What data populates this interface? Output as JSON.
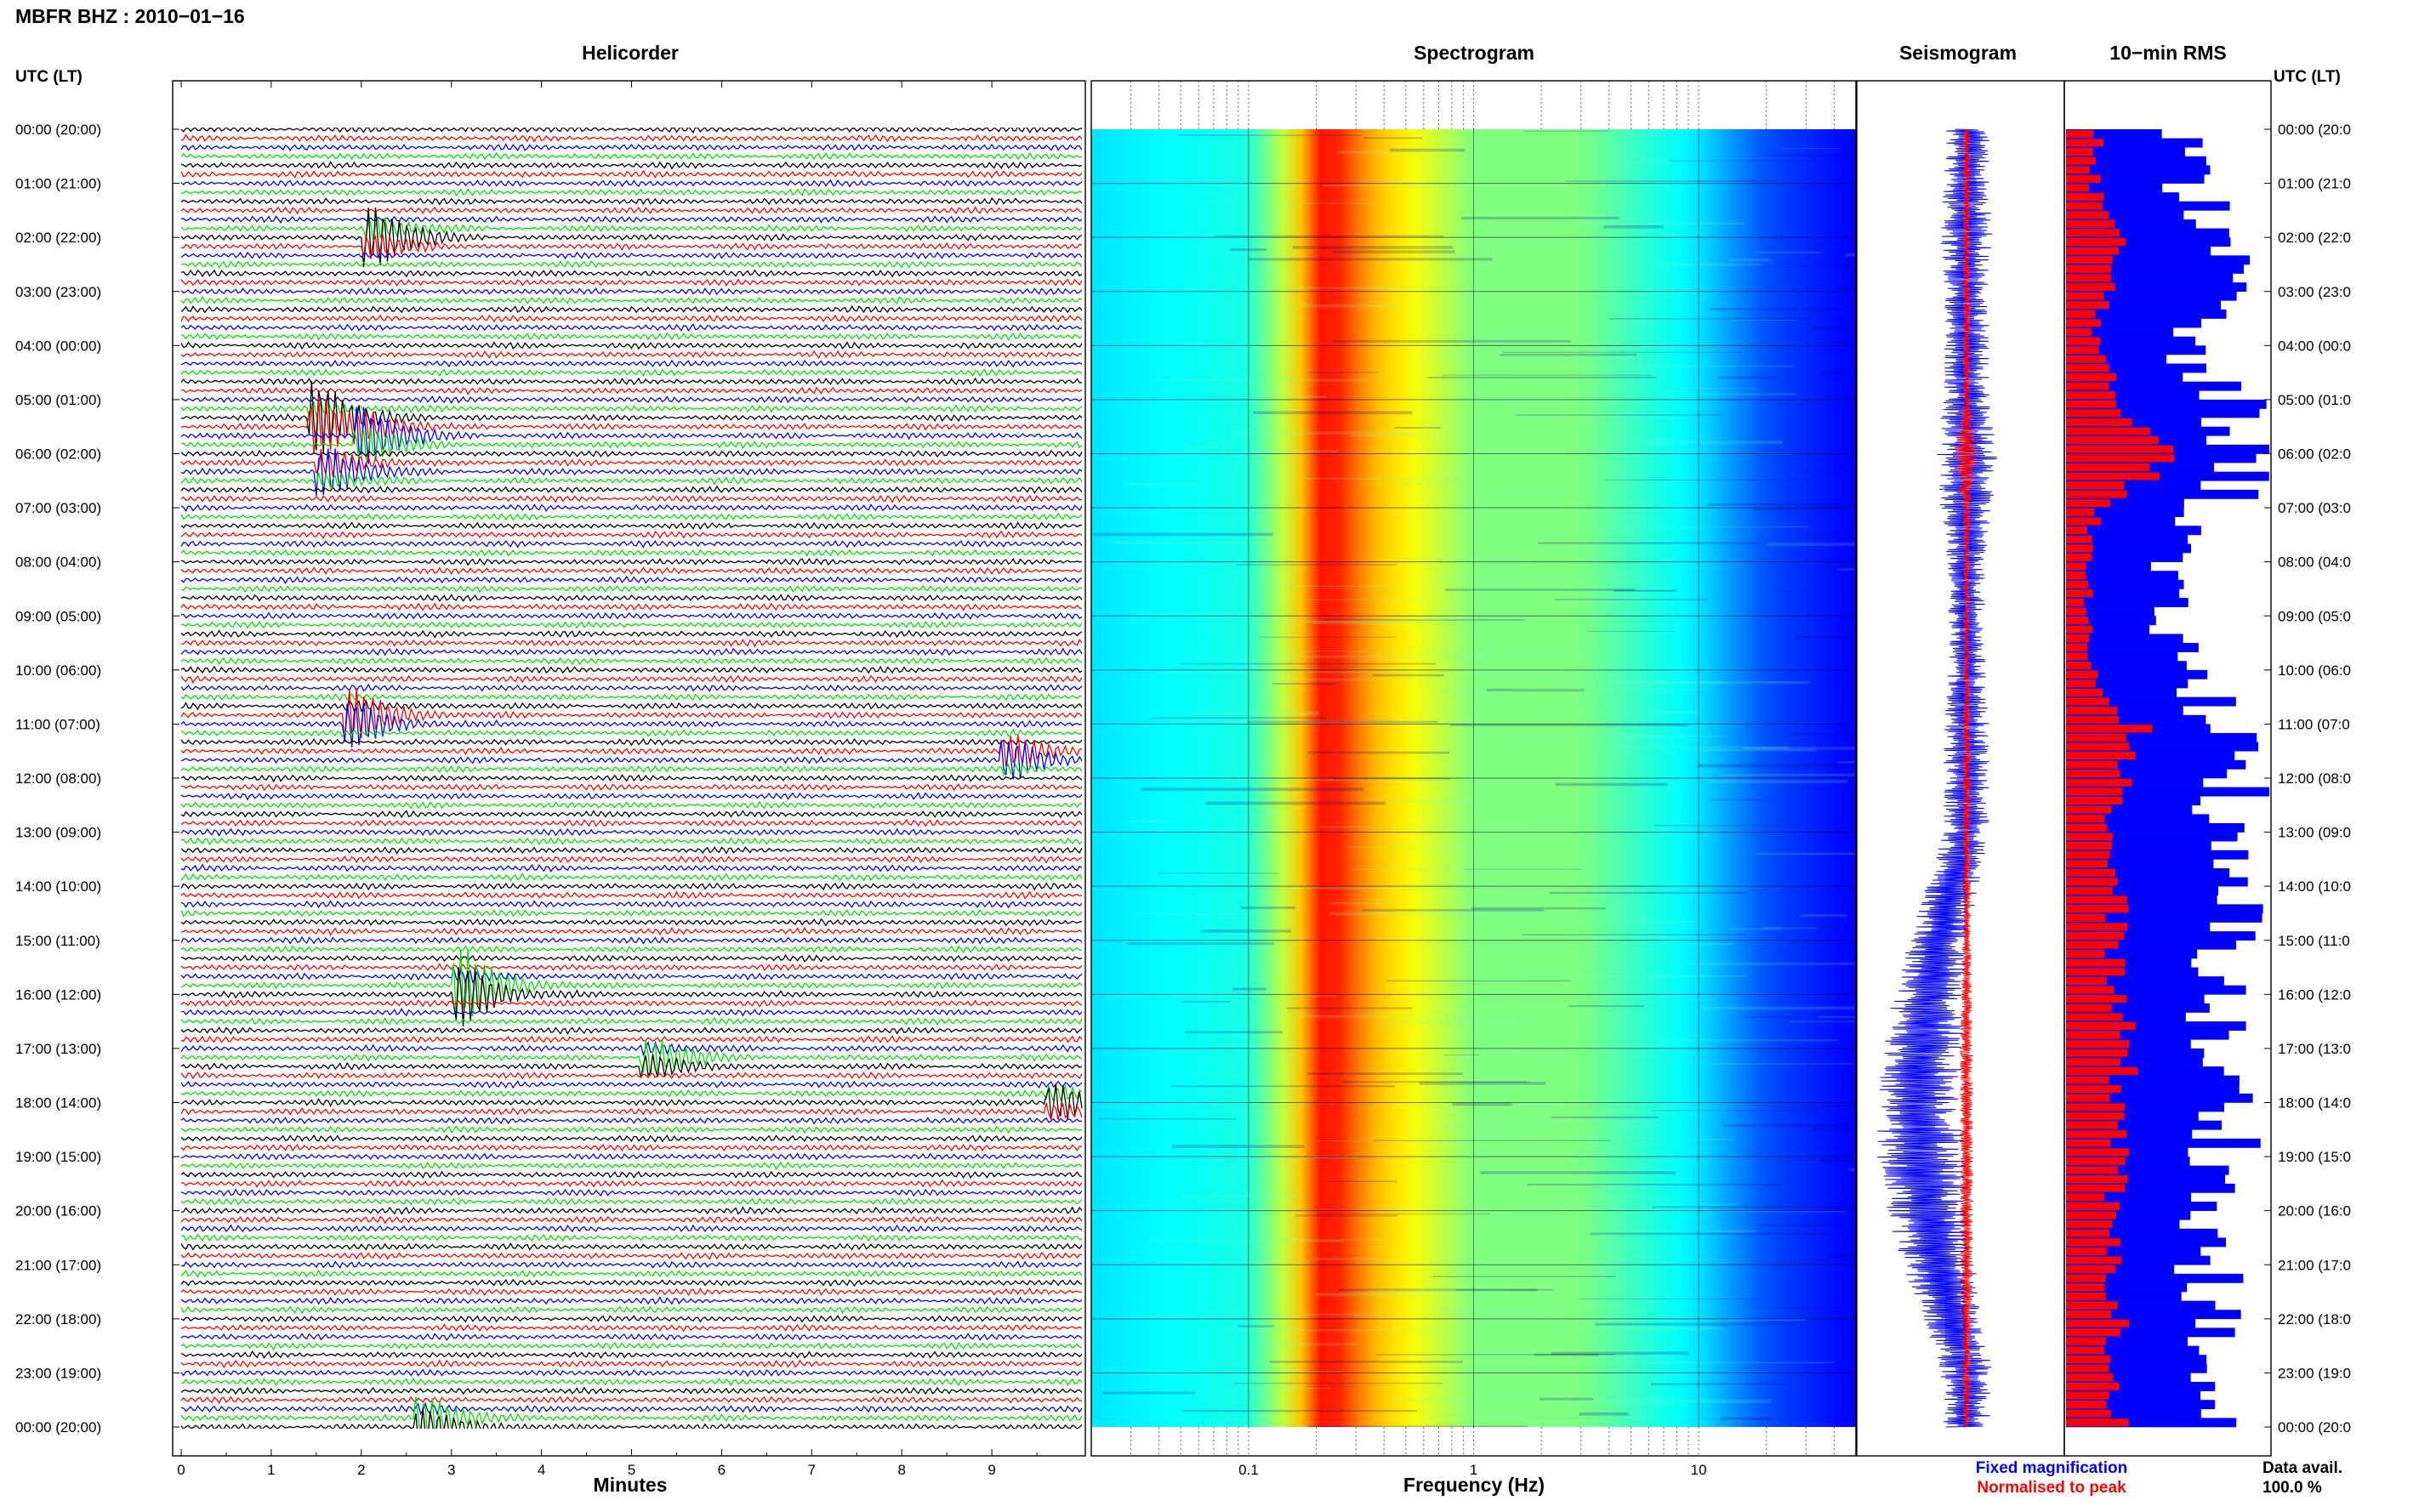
{
  "header": {
    "station_title": "MBFR BHZ : 2010−01−16",
    "time_axis_label": "UTC (LT)"
  },
  "panels": {
    "helicorder": "Helicorder",
    "spectrogram": "Spectrogram",
    "seismogram": "Seismogram",
    "rms": "10−min RMS"
  },
  "footer": {
    "minutes_label": "Minutes",
    "frequency_label": "Frequency (Hz)",
    "legend_fixed": "Fixed magnification",
    "legend_normalised": "Normalised to peak",
    "data_avail_label": "Data avail.",
    "data_avail_value": "100.0 %"
  },
  "colors": {
    "fixed": "#0000ff",
    "normalised": "#ff0000",
    "trace_cycle": [
      "#000000",
      "#ff0000",
      "#0000ff",
      "#00dd00"
    ]
  },
  "chart_data": [
    {
      "type": "line",
      "panel": "helicorder",
      "xlabel": "Minutes",
      "x_ticks": [
        0,
        1,
        2,
        3,
        4,
        5,
        6,
        7,
        8,
        9
      ],
      "xlim": [
        0,
        10
      ],
      "traces_per_hour": 6,
      "hour_labels_left": [
        "00:00 (20:00)",
        "01:00 (21:00)",
        "02:00 (22:00)",
        "03:00 (23:00)",
        "04:00 (00:00)",
        "05:00 (01:00)",
        "06:00 (02:00)",
        "07:00 (03:00)",
        "08:00 (04:00)",
        "09:00 (05:00)",
        "10:00 (06:00)",
        "11:00 (07:00)",
        "12:00 (08:00)",
        "13:00 (09:00)",
        "14:00 (10:00)",
        "15:00 (11:00)",
        "16:00 (12:00)",
        "17:00 (13:00)",
        "18:00 (14:00)",
        "19:00 (15:00)",
        "20:00 (16:00)",
        "21:00 (17:00)",
        "22:00 (18:00)",
        "23:00 (19:00)",
        "00:00 (20:00)"
      ],
      "hour_labels_right": [
        "00:00 (20:0",
        "01:00 (21:0",
        "02:00 (22:0",
        "03:00 (23:0",
        "04:00 (00:0",
        "05:00 (01:0",
        "06:00 (02:0",
        "07:00 (03:0",
        "08:00 (04:0",
        "09:00 (05:0",
        "10:00 (06:0",
        "11:00 (07:0",
        "12:00 (08:0",
        "13:00 (09:0",
        "14:00 (10:0",
        "15:00 (11:0",
        "16:00 (12:0",
        "17:00 (13:0",
        "18:00 (14:0",
        "19:00 (15:0",
        "20:00 (16:0",
        "21:00 (17:0",
        "22:00 (18:0",
        "23:00 (19:0",
        "00:00 (20:0"
      ],
      "events": [
        {
          "hour": 2.0,
          "minute": 2.2,
          "amp": 2.5
        },
        {
          "hour": 5.4,
          "minute": 1.6,
          "amp": 3.5
        },
        {
          "hour": 5.7,
          "minute": 2.1,
          "amp": 2.5
        },
        {
          "hour": 6.3,
          "minute": 1.7,
          "amp": 2.0
        },
        {
          "hour": 10.9,
          "minute": 2.0,
          "amp": 2.5
        },
        {
          "hour": 11.6,
          "minute": 9.3,
          "amp": 1.8
        },
        {
          "hour": 15.9,
          "minute": 3.2,
          "amp": 3.5
        },
        {
          "hour": 17.2,
          "minute": 5.3,
          "amp": 1.6
        },
        {
          "hour": 18.0,
          "minute": 9.8,
          "amp": 1.5
        },
        {
          "hour": 23.9,
          "minute": 2.8,
          "amp": 2.0
        }
      ]
    },
    {
      "type": "heatmap",
      "panel": "spectrogram",
      "xlabel": "Frequency (Hz)",
      "x_scale": "log",
      "xlim": [
        0.02,
        50
      ],
      "x_tick_labels": [
        {
          "value": 0.1,
          "label": "0.1"
        },
        {
          "value": 1,
          "label": "1"
        },
        {
          "value": 10,
          "label": "10"
        }
      ],
      "ylim_hours": [
        0,
        24
      ],
      "microseism_peak_hz": 0.22,
      "band_profile": [
        {
          "hz": 0.02,
          "level": 0.35
        },
        {
          "hz": 0.1,
          "level": 0.4
        },
        {
          "hz": 0.16,
          "level": 0.62
        },
        {
          "hz": 0.22,
          "level": 0.9
        },
        {
          "hz": 0.35,
          "level": 0.7
        },
        {
          "hz": 1.0,
          "level": 0.5
        },
        {
          "hz": 3.0,
          "level": 0.5
        },
        {
          "hz": 10.0,
          "level": 0.35
        },
        {
          "hz": 20.0,
          "level": 0.2
        },
        {
          "hz": 50.0,
          "level": 0.12
        }
      ]
    },
    {
      "type": "line",
      "panel": "seismogram",
      "ylim_hours": [
        0,
        24
      ],
      "series": [
        {
          "name": "Fixed magnification",
          "color": "#0000ff",
          "amplitude_by_hour": [
            0.3,
            0.3,
            0.35,
            0.3,
            0.3,
            0.3,
            0.4,
            0.35,
            0.25,
            0.25,
            0.25,
            0.3,
            0.3,
            0.3,
            0.35,
            0.4,
            0.45,
            0.55,
            0.55,
            0.6,
            0.55,
            0.5,
            0.4,
            0.35,
            0.3
          ]
        },
        {
          "name": "Normalised to peak",
          "color": "#ff0000",
          "amplitude_by_hour": [
            0.1,
            0.1,
            0.1,
            0.1,
            0.1,
            0.1,
            0.3,
            0.1,
            0.08,
            0.08,
            0.08,
            0.1,
            0.12,
            0.1,
            0.1,
            0.1,
            0.12,
            0.15,
            0.15,
            0.15,
            0.15,
            0.15,
            0.12,
            0.1,
            0.1
          ]
        }
      ]
    },
    {
      "type": "bar",
      "panel": "rms",
      "ylim_hours": [
        0,
        24
      ],
      "bins_per_hour": 6,
      "series": [
        {
          "name": "Fixed magnification",
          "color": "#0000ff",
          "hourly_level": [
            0.55,
            0.6,
            0.85,
            0.75,
            0.55,
            0.8,
            0.95,
            0.7,
            0.45,
            0.5,
            0.6,
            0.85,
            0.85,
            0.7,
            0.8,
            0.8,
            0.75,
            0.7,
            0.8,
            0.8,
            0.65,
            0.7,
            0.7,
            0.65,
            0.7
          ]
        },
        {
          "name": "Normalised to peak",
          "color": "#ff0000",
          "hourly_level": [
            0.15,
            0.15,
            0.25,
            0.2,
            0.15,
            0.25,
            0.6,
            0.15,
            0.1,
            0.12,
            0.15,
            0.35,
            0.3,
            0.2,
            0.25,
            0.25,
            0.25,
            0.3,
            0.25,
            0.3,
            0.2,
            0.25,
            0.25,
            0.2,
            0.3
          ]
        }
      ]
    }
  ]
}
